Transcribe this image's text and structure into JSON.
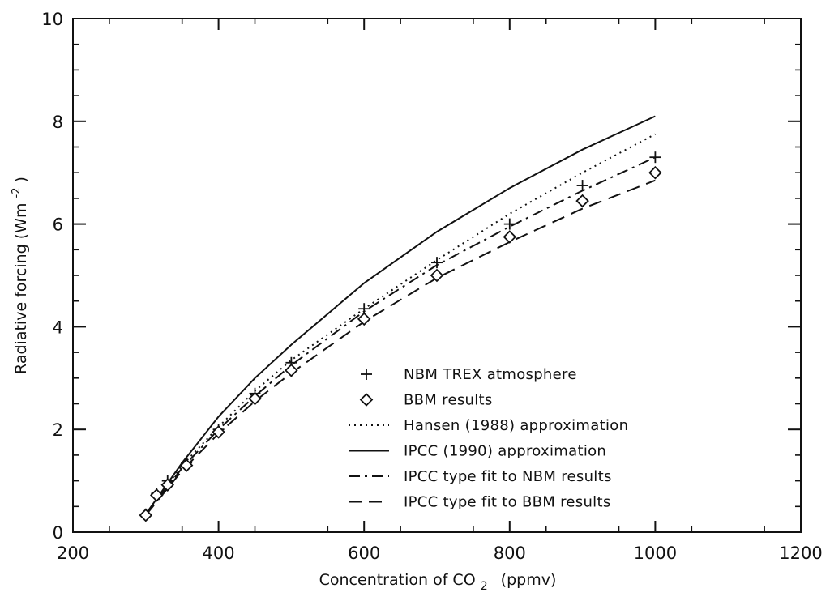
{
  "chart_data": {
    "type": "line",
    "title": "",
    "xlabel": "Concentration of CO",
    "xlabel_subscript": "2",
    "xlabel_suffix": "(ppmv)",
    "ylabel": "Radiative forcing (Wm",
    "ylabel_superscript": "-2",
    "ylabel_suffix": ")",
    "xlim": [
      200,
      1200
    ],
    "ylim": [
      0,
      10
    ],
    "x_ticks": [
      200,
      400,
      600,
      800,
      1000,
      1200
    ],
    "y_ticks": [
      0,
      2,
      4,
      6,
      8,
      10
    ],
    "x_tick_labels": [
      "200",
      "400",
      "600",
      "800",
      "1000",
      "1200"
    ],
    "y_tick_labels": [
      "0",
      "2",
      "4",
      "6",
      "8",
      "10"
    ],
    "grid": false,
    "legend_position": "lower-right",
    "series": [
      {
        "name": "NBM TREX atmosphere",
        "style": "plus",
        "x": [
          300,
          315,
          330,
          356,
          400,
          450,
          500,
          600,
          700,
          800,
          900,
          1000
        ],
        "y": [
          0.35,
          0.75,
          1.0,
          1.35,
          2.0,
          2.7,
          3.3,
          4.35,
          5.25,
          6.0,
          6.75,
          7.3
        ]
      },
      {
        "name": "BBM results",
        "style": "diamond",
        "x": [
          300,
          315,
          330,
          356,
          400,
          450,
          500,
          600,
          700,
          800,
          900,
          1000
        ],
        "y": [
          0.33,
          0.72,
          0.92,
          1.3,
          1.95,
          2.6,
          3.15,
          4.15,
          5.0,
          5.75,
          6.45,
          7.0
        ]
      },
      {
        "name": "Hansen (1988) approximation",
        "style": "dotted",
        "x": [
          300,
          350,
          400,
          450,
          500,
          600,
          700,
          800,
          900,
          1000
        ],
        "y": [
          0.35,
          1.3,
          2.05,
          2.75,
          3.35,
          4.35,
          5.3,
          6.2,
          7.0,
          7.75
        ]
      },
      {
        "name": "IPCC (1990) approximation",
        "style": "solid",
        "x": [
          300,
          350,
          400,
          450,
          500,
          600,
          700,
          800,
          900,
          1000
        ],
        "y": [
          0.35,
          1.35,
          2.25,
          3.0,
          3.65,
          4.85,
          5.85,
          6.7,
          7.45,
          8.1
        ]
      },
      {
        "name": "IPCC type fit to NBM results",
        "style": "dashdot",
        "x": [
          300,
          350,
          400,
          450,
          500,
          600,
          700,
          800,
          900,
          1000
        ],
        "y": [
          0.35,
          1.25,
          2.0,
          2.65,
          3.25,
          4.3,
          5.2,
          5.95,
          6.65,
          7.3
        ]
      },
      {
        "name": "IPCC type fit to BBM results",
        "style": "dashed",
        "x": [
          300,
          350,
          400,
          450,
          500,
          600,
          700,
          800,
          900,
          1000
        ],
        "y": [
          0.33,
          1.2,
          1.92,
          2.55,
          3.1,
          4.1,
          4.95,
          5.65,
          6.3,
          6.85
        ]
      }
    ]
  }
}
